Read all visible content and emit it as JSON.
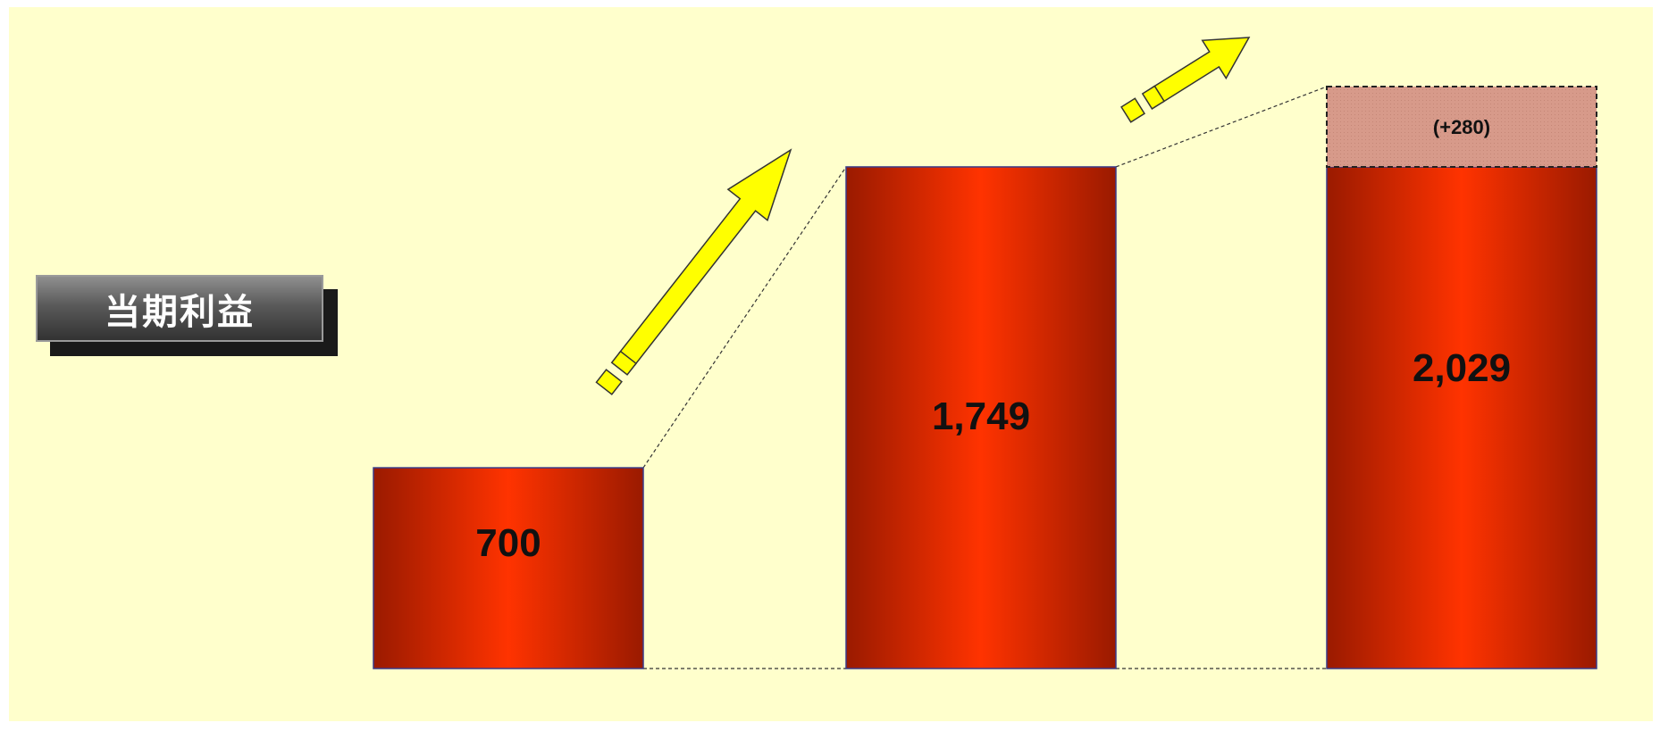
{
  "label": {
    "text": "当期利益"
  },
  "chart_data": {
    "type": "bar",
    "categories": [
      "",
      "",
      ""
    ],
    "series": [
      {
        "values": [
          700,
          1749,
          1749
        ]
      },
      {
        "values": [
          0,
          0,
          280
        ]
      }
    ],
    "data_labels": [
      "700",
      "1,749",
      "2,029"
    ],
    "increment_label": "(+280)",
    "ylim": [
      0,
      2029
    ],
    "grid": false,
    "legend": "none",
    "colors": {
      "bar_center": "#ff3300",
      "bar_edge": "#9a1a00",
      "bar_border": "#3a3a8a",
      "increment_fill": "#d79a8a",
      "arrow_fill": "#ffff00",
      "arrow_stroke": "#333333",
      "background": "#ffffcc"
    }
  }
}
